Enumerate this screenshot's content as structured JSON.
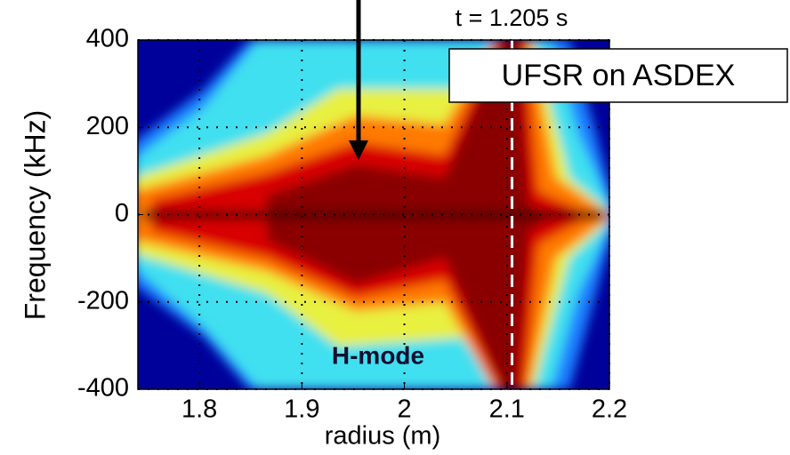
{
  "chart_data": {
    "type": "heatmap",
    "time_label": "t = 1.205 s",
    "annotations": [
      "UFSR on ASDEX",
      "H-mode"
    ],
    "xlabel": "radius (m)",
    "ylabel": "Frequency (kHz)",
    "xlim": [
      1.74,
      2.2
    ],
    "ylim": [
      -400,
      400
    ],
    "xticks": [
      1.8,
      1.9,
      2,
      2.1,
      2.2
    ],
    "yticks": [
      -400,
      -200,
      0,
      200,
      400
    ],
    "grid": true,
    "dashed_line_x": 2.105
  }
}
